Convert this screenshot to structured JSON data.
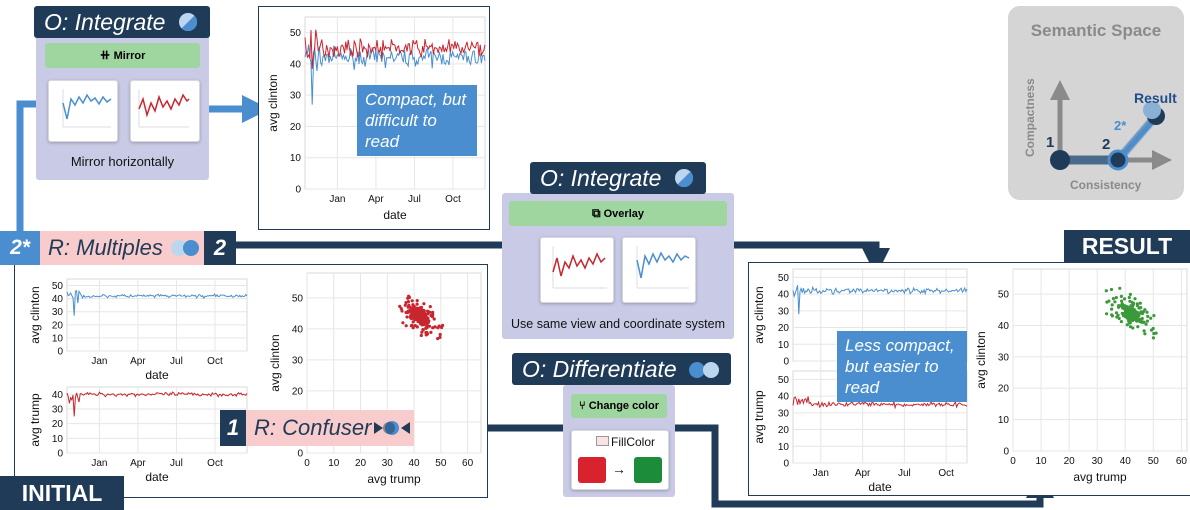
{
  "mirror_op": {
    "title": "O: Integrate",
    "button": "Mirror",
    "caption": "Mirror horizontally"
  },
  "overlay_op": {
    "title": "O: Integrate",
    "button": "Overlay",
    "caption": "Use same view and coordinate system"
  },
  "differentiate_op": {
    "title": "O: Differentiate",
    "button": "Change color",
    "widget_label": "FillColor",
    "arrow": "→"
  },
  "multiples_rule": {
    "left_badge": "2*",
    "label": "R: Multiples",
    "right_badge": "2"
  },
  "confuser_rule": {
    "badge": "1",
    "label": "R: Confuser"
  },
  "labels": {
    "initial": "INITIAL",
    "result": "RESULT"
  },
  "notes": {
    "compact": "Compact, but difficult to read",
    "less_compact": "Less compact, but easier to read"
  },
  "semantic_space": {
    "title": "Semantic Space",
    "y_axis": "Compactness",
    "x_axis": "Consistency",
    "point_1": "1",
    "point_2": "2",
    "point_2s": "2*",
    "point_result": "Result"
  },
  "colors": {
    "navy": "#1f3b57",
    "blue_series": "#4a8ed0",
    "red_series": "#c8262f",
    "green_series": "#3a9a3a",
    "op_card": "#c9cbe6",
    "pink_bar": "#f8cccc",
    "green_button": "#9fd59f"
  },
  "chart_data": [
    {
      "id": "mirror-chart",
      "type": "line",
      "xlabel": "date",
      "ylabel": "avg clinton",
      "ylim": [
        0,
        55
      ],
      "x_ticks": [
        "Jan",
        "Apr",
        "Jul",
        "Oct"
      ],
      "y_ticks": [
        0,
        10,
        20,
        30,
        40,
        50
      ],
      "series_colors": [
        "#4a8ed0",
        "#c8262f"
      ],
      "series_levels": [
        42,
        45
      ]
    },
    {
      "id": "initial-clinton",
      "type": "line",
      "xlabel": "date",
      "ylabel": "avg clinton",
      "ylim": [
        0,
        55
      ],
      "x_ticks": [
        "Jan",
        "Apr",
        "Jul",
        "Oct"
      ],
      "y_ticks": [
        0,
        10,
        20,
        30,
        40,
        50
      ],
      "series_colors": [
        "#4a8ed0"
      ],
      "series_levels": [
        42
      ]
    },
    {
      "id": "initial-trump",
      "type": "line",
      "xlabel": "date",
      "ylabel": "avg trump",
      "ylim": [
        0,
        45
      ],
      "x_ticks": [
        "Jan",
        "Apr",
        "Jul",
        "Oct"
      ],
      "y_ticks": [
        0,
        10,
        20,
        30,
        40
      ],
      "series_colors": [
        "#c8262f"
      ],
      "series_levels": [
        40
      ]
    },
    {
      "id": "initial-scatter",
      "type": "scatter",
      "xlabel": "avg trump",
      "ylabel": "avg clinton",
      "xlim": [
        0,
        65
      ],
      "ylim": [
        0,
        58
      ],
      "x_ticks": [
        0,
        10,
        20,
        30,
        40,
        50,
        60
      ],
      "y_ticks": [
        0,
        10,
        20,
        30,
        40,
        50
      ],
      "color": "#c8262f",
      "center": [
        42,
        44
      ]
    },
    {
      "id": "result-stacked",
      "type": "line",
      "xlabel": "date",
      "ylabel_top": "avg clinton",
      "ylabel_bottom": "avg trump",
      "top_ticks": [
        0,
        10,
        20,
        30,
        40,
        50
      ],
      "bottom_ticks": [
        0,
        10,
        20,
        30,
        40,
        50
      ],
      "x_ticks": [
        "Jan",
        "Apr",
        "Jul",
        "Oct"
      ],
      "series_colors": [
        "#4a8ed0",
        "#c8262f"
      ],
      "series_levels": [
        42,
        40
      ]
    },
    {
      "id": "result-scatter",
      "type": "scatter",
      "xlabel": "avg trump",
      "ylabel": "avg clinton",
      "xlim": [
        0,
        62
      ],
      "ylim": [
        0,
        58
      ],
      "x_ticks": [
        0,
        10,
        20,
        30,
        40,
        50,
        60
      ],
      "y_ticks": [
        0,
        10,
        20,
        30,
        40,
        50
      ],
      "color": "#3a9a3a",
      "center": [
        42,
        44
      ]
    }
  ]
}
